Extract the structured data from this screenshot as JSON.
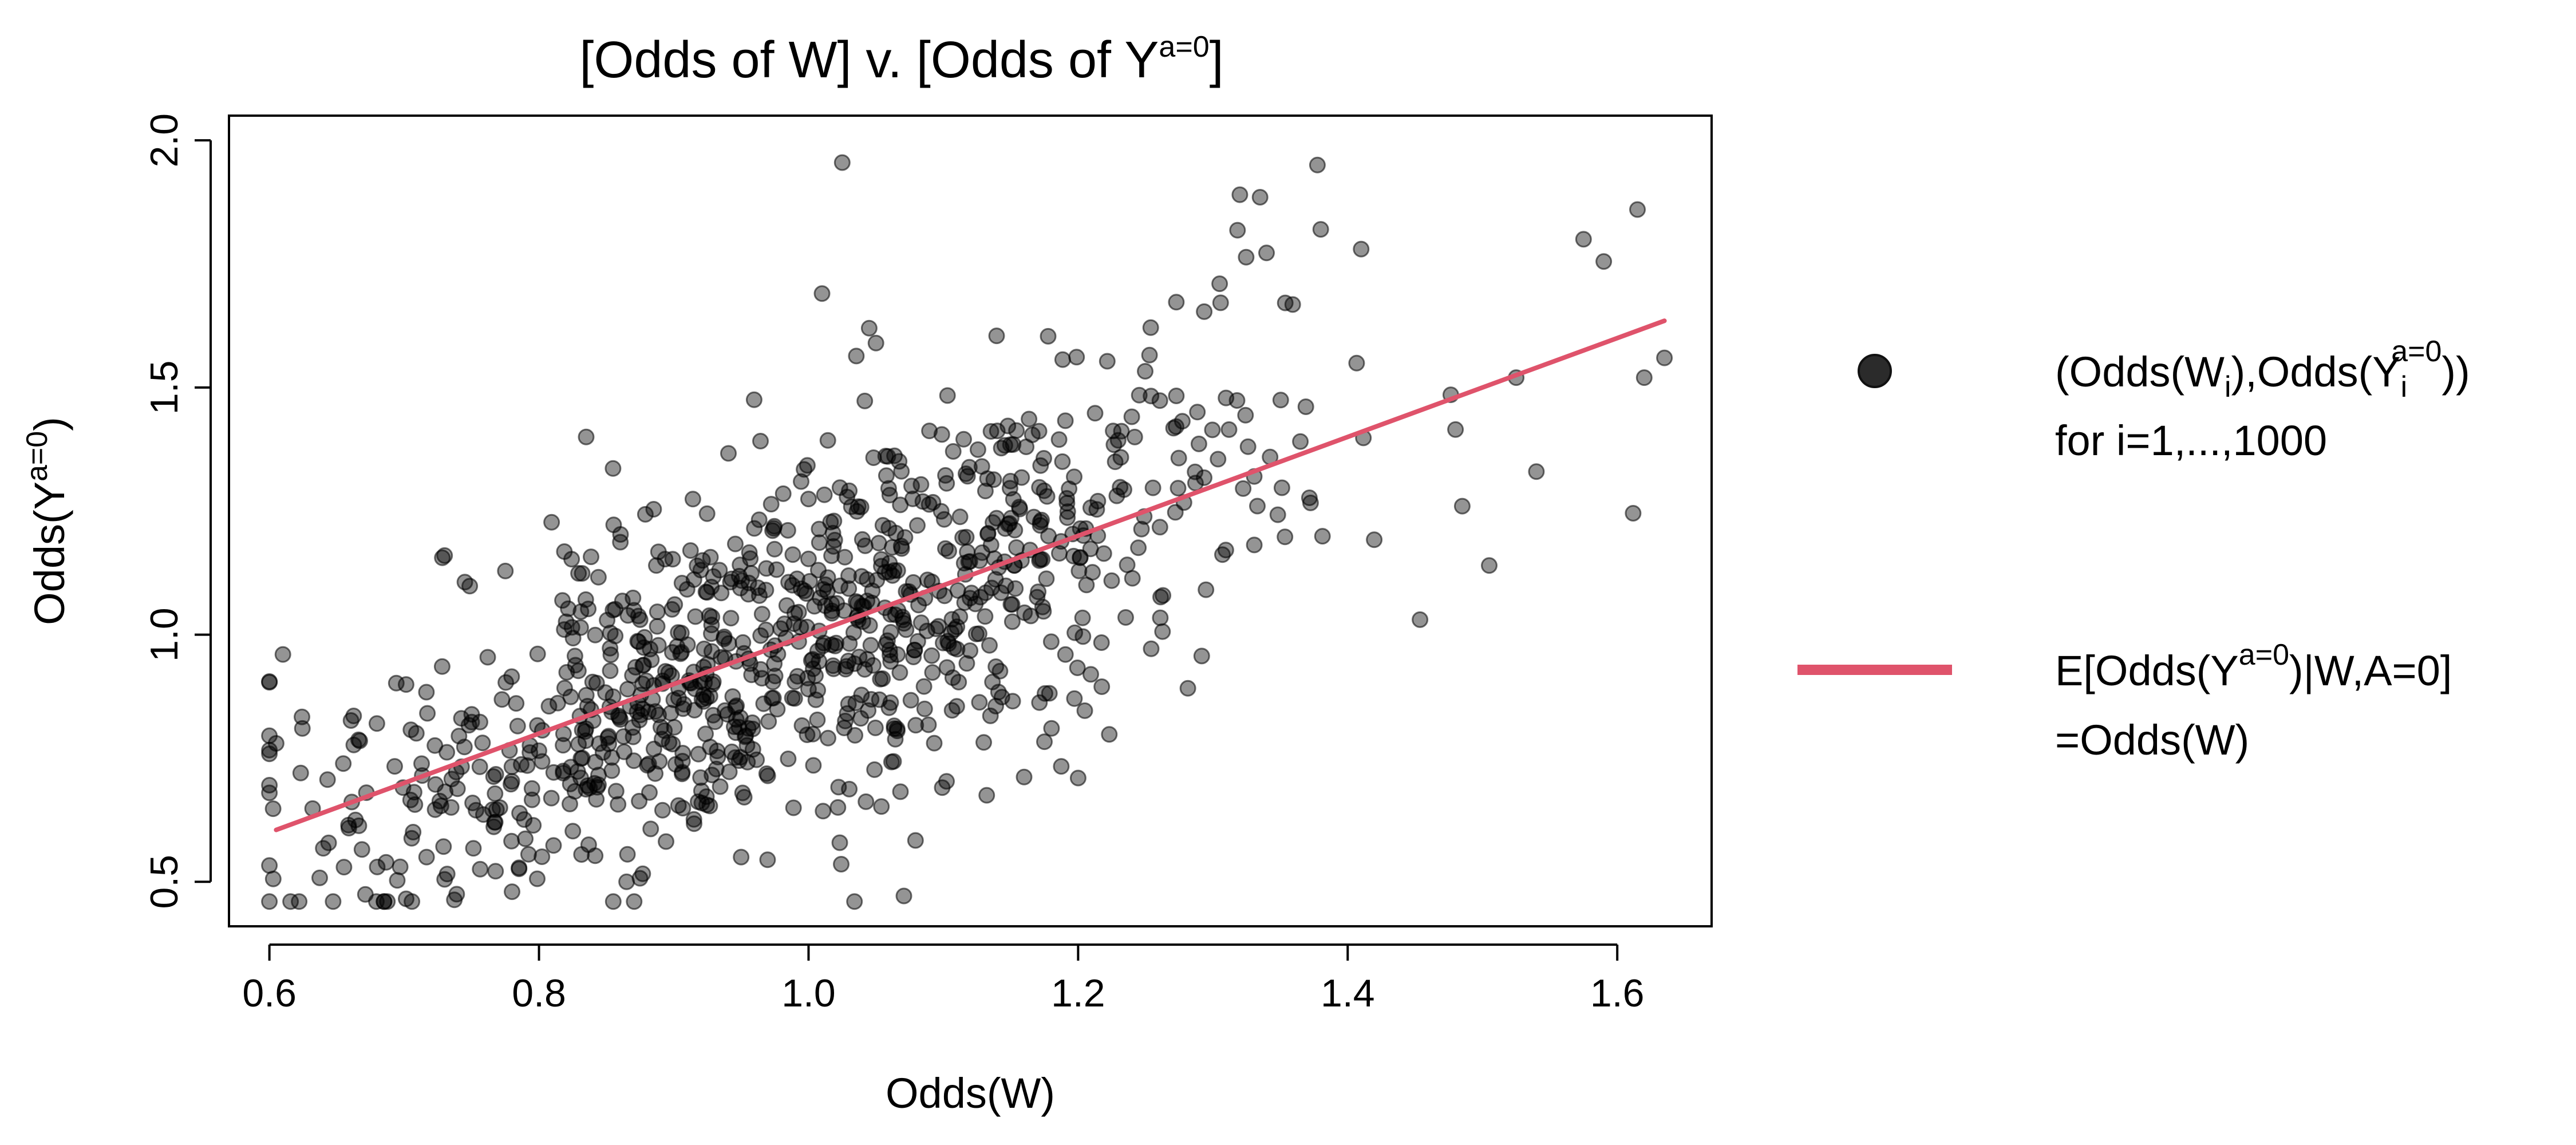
{
  "chart_data": {
    "type": "scatter",
    "title": {
      "main": "[Odds of W] v. [Odds of Y",
      "sup": "a=0",
      "tail": "]"
    },
    "xlabel": "Odds(W)",
    "ylabel": {
      "main": "Odds(Y",
      "sup": "a=0",
      "tail": ")"
    },
    "xlim": [
      0.57,
      1.67
    ],
    "ylim": [
      0.41,
      2.05
    ],
    "xticks": [
      "0.6",
      "0.8",
      "1.0",
      "1.2",
      "1.4",
      "1.6"
    ],
    "yticks": [
      "0.5",
      "1.0",
      "1.5",
      "2.0"
    ],
    "grid": false,
    "legend_position": "right",
    "point_color": "#000000",
    "point_opacity": 0.42,
    "line_color": "#DF536B",
    "series": [
      {
        "name": "(Odds(W_i),Odds(Y_i^{a=0})) for i=1,...,1000",
        "kind": "points",
        "n": 1000,
        "seed": 20240601,
        "x_mean": 1.0,
        "x_sd": 0.18,
        "x_range": [
          0.6,
          1.63
        ],
        "noise_sd": 0.18,
        "points": [
          [
            1.025,
            1.955
          ],
          [
            1.32,
            1.89
          ],
          [
            1.335,
            1.885
          ],
          [
            1.615,
            1.86
          ],
          [
            1.38,
            1.82
          ],
          [
            1.575,
            1.8
          ],
          [
            1.59,
            1.755
          ],
          [
            1.41,
            1.78
          ],
          [
            1.305,
            1.71
          ],
          [
            1.01,
            1.69
          ],
          [
            0.61,
            0.96
          ],
          [
            0.605,
            0.78
          ],
          [
            0.685,
            0.46
          ],
          [
            0.68,
            0.53
          ],
          [
            0.73,
            0.505
          ],
          [
            0.78,
            0.48
          ],
          [
            0.865,
            0.5
          ],
          [
            0.95,
            0.55
          ],
          [
            1.2,
            0.71
          ],
          [
            1.635,
            1.56
          ],
          [
            1.62,
            1.52
          ],
          [
            1.54,
            1.33
          ],
          [
            1.505,
            1.14
          ],
          [
            1.525,
            1.52
          ],
          [
            1.48,
            1.415
          ],
          [
            1.485,
            1.26
          ],
          [
            0.835,
            1.4
          ],
          [
            0.73,
            1.16
          ],
          [
            1.05,
            1.59
          ],
          [
            1.045,
            1.62
          ]
        ]
      },
      {
        "name": "E[Odds(Y^{a=0})|W,A=0] =Odds(W)",
        "kind": "line",
        "x": [
          0.605,
          1.635
        ],
        "y": [
          0.605,
          1.635
        ]
      }
    ],
    "legend": [
      {
        "line1": {
          "a": "(Odds(W",
          "b": "i",
          "c": "),Odds(Y",
          "d": "i",
          "e": "a=0",
          "f": "))"
        },
        "line2": "for i=1,...,1000"
      },
      {
        "line1": {
          "a": "E[Odds(Y",
          "b": "a=0",
          "c": ")|W,A=0]"
        },
        "line2": "=Odds(W)"
      }
    ]
  }
}
